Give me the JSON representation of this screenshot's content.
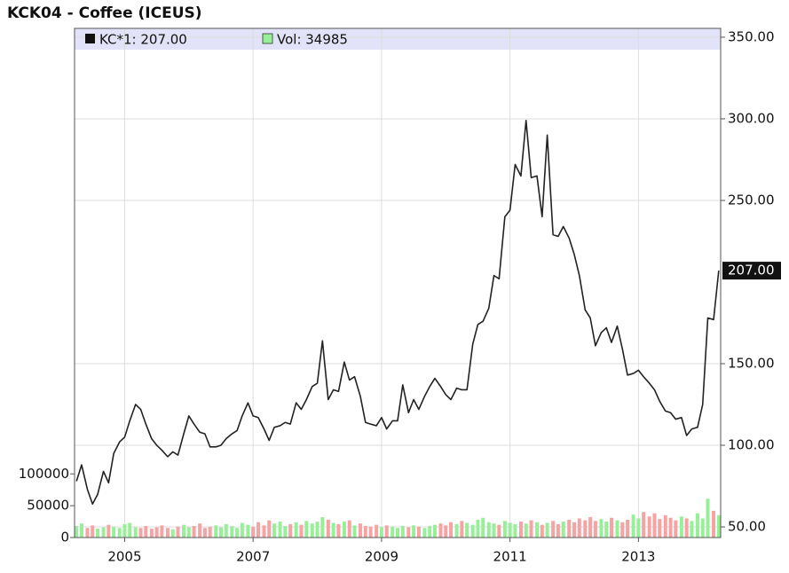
{
  "chart_data": {
    "type": "line",
    "title": "KCK04 - Coffee (ICEUS)",
    "x": [
      2004.25,
      2004.33,
      2004.42,
      2004.5,
      2004.58,
      2004.67,
      2004.75,
      2004.83,
      2004.92,
      2005,
      2005.08,
      2005.17,
      2005.25,
      2005.33,
      2005.42,
      2005.5,
      2005.58,
      2005.67,
      2005.75,
      2005.83,
      2005.92,
      2006,
      2006.08,
      2006.17,
      2006.25,
      2006.33,
      2006.42,
      2006.5,
      2006.58,
      2006.67,
      2006.75,
      2006.83,
      2006.92,
      2007,
      2007.08,
      2007.17,
      2007.25,
      2007.33,
      2007.42,
      2007.5,
      2007.58,
      2007.67,
      2007.75,
      2007.83,
      2007.92,
      2008,
      2008.08,
      2008.17,
      2008.25,
      2008.33,
      2008.42,
      2008.5,
      2008.58,
      2008.67,
      2008.75,
      2008.83,
      2008.92,
      2009,
      2009.08,
      2009.17,
      2009.25,
      2009.33,
      2009.42,
      2009.5,
      2009.58,
      2009.67,
      2009.75,
      2009.83,
      2009.92,
      2010,
      2010.08,
      2010.17,
      2010.25,
      2010.33,
      2010.42,
      2010.5,
      2010.58,
      2010.67,
      2010.75,
      2010.83,
      2010.92,
      2011,
      2011.08,
      2011.17,
      2011.25,
      2011.33,
      2011.42,
      2011.5,
      2011.58,
      2011.67,
      2011.75,
      2011.83,
      2011.92,
      2012,
      2012.08,
      2012.17,
      2012.25,
      2012.33,
      2012.42,
      2012.5,
      2012.58,
      2012.67,
      2012.75,
      2012.83,
      2012.92,
      2013,
      2013.08,
      2013.17,
      2013.25,
      2013.33,
      2013.42,
      2013.5,
      2013.58,
      2013.67,
      2013.75,
      2013.83,
      2013.92,
      2014,
      2014.08,
      2014.17,
      2014.25
    ],
    "xlim": [
      2004.22,
      2014.28
    ],
    "xticks": [
      2005,
      2007,
      2009,
      2011,
      2013
    ],
    "ylim": [
      43.5,
      355.4
    ],
    "yticks": [
      {
        "value": 50,
        "label": "50.00"
      },
      {
        "value": 100,
        "label": "100.00"
      },
      {
        "value": 150,
        "label": "150.00"
      },
      {
        "value": 250,
        "label": "250.00"
      },
      {
        "value": 300,
        "label": "300.00"
      },
      {
        "value": 350,
        "label": "350.00"
      }
    ],
    "y2lim": [
      0,
      800000
    ],
    "y2ticks": [
      0,
      50000,
      100000
    ],
    "grid": true,
    "last_value": {
      "value": 207,
      "label": "207.00"
    },
    "series": [
      {
        "name": "KC*1: 207.00",
        "color": "#222222",
        "values": [
          78,
          88,
          73,
          64,
          70,
          84,
          77,
          95,
          102,
          105,
          115,
          125,
          122,
          113,
          104,
          100,
          97,
          93,
          96,
          94,
          107,
          118,
          113,
          108,
          107,
          99,
          99,
          100,
          104,
          107,
          109,
          118,
          126,
          118,
          117,
          110,
          103,
          111,
          112,
          114,
          113,
          126,
          122,
          128,
          136,
          138,
          164,
          128,
          134,
          133,
          151,
          140,
          142,
          130,
          114,
          113,
          112,
          117,
          110,
          115,
          115,
          137,
          120,
          128,
          122,
          130,
          136,
          141,
          136,
          131,
          128,
          135,
          134,
          134,
          162,
          174,
          176,
          184,
          204,
          202,
          240,
          244,
          272,
          265,
          299,
          264,
          265,
          240,
          290,
          229,
          228,
          234,
          227,
          217,
          204,
          183,
          178,
          161,
          169,
          172,
          163,
          173,
          159,
          143,
          144,
          146,
          142,
          138,
          134,
          127,
          121,
          120,
          116,
          117,
          106,
          110,
          111,
          125,
          178,
          177,
          207
        ]
      },
      {
        "name": "Vol: 34985",
        "type": "bar",
        "axis": "y2",
        "color": "#99ee99",
        "down_color": "#f5a3a3",
        "values": [
          18000,
          22000,
          15000,
          19000,
          14000,
          16000,
          20000,
          17000,
          15000,
          21000,
          23000,
          16000,
          15000,
          18000,
          14000,
          16000,
          19000,
          15000,
          13000,
          17000,
          20000,
          16000,
          18000,
          22000,
          15000,
          17000,
          19000,
          16000,
          21000,
          18000,
          15000,
          23000,
          20000,
          17000,
          24000,
          19000,
          27000,
          22000,
          25000,
          18000,
          21000,
          24000,
          20000,
          26000,
          22000,
          25000,
          32000,
          28000,
          23000,
          21000,
          25000,
          27000,
          19000,
          22000,
          18000,
          17000,
          20000,
          16000,
          19000,
          17000,
          15000,
          18000,
          16000,
          19000,
          17000,
          15000,
          18000,
          20000,
          22000,
          19000,
          24000,
          21000,
          26000,
          23000,
          20000,
          28000,
          31000,
          24000,
          22000,
          20000,
          26000,
          23000,
          21000,
          25000,
          22000,
          27000,
          24000,
          20000,
          23000,
          26000,
          21000,
          25000,
          28000,
          24000,
          30000,
          27000,
          32000,
          26000,
          29000,
          25000,
          31000,
          27000,
          24000,
          28000,
          36000,
          30000,
          40000,
          33000,
          38000,
          29000,
          35000,
          31000,
          27000,
          33000,
          30000,
          26000,
          38000,
          30000,
          61000,
          42000,
          34985
        ]
      }
    ]
  }
}
